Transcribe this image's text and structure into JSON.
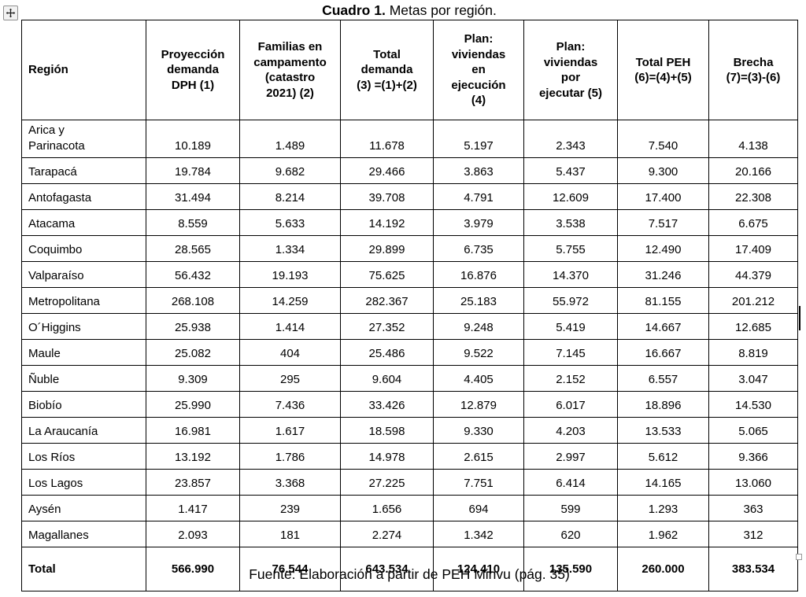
{
  "page": {
    "title_bold": "Cuadro 1.",
    "title_rest": " Metas por región.",
    "footer": "Fuente: Elaboración a partir de PEH Minvu (pág. 35)"
  },
  "icons": {
    "move_handle": "move-icon",
    "resize_handle": "resize-handle",
    "text_cursor": "text-cursor"
  },
  "table": {
    "columns": [
      "Región",
      "Proyección\ndemanda\nDPH (1)",
      "Familias en\ncampamento\n(catastro\n2021) (2)",
      "Total\ndemanda\n(3) =(1)+(2)",
      "Plan:\nviviendas\nen\nejecución\n(4)",
      "Plan:\nviviendas\npor\nejecutar (5)",
      "Total PEH\n(6)=(4)+(5)",
      "Brecha\n(7)=(3)-(6)"
    ],
    "rows": [
      {
        "region": "Arica y\nParinacota",
        "values": [
          "10.189",
          "1.489",
          "11.678",
          "5.197",
          "2.343",
          "7.540",
          "4.138"
        ]
      },
      {
        "region": "Tarapacá",
        "values": [
          "19.784",
          "9.682",
          "29.466",
          "3.863",
          "5.437",
          "9.300",
          "20.166"
        ]
      },
      {
        "region": "Antofagasta",
        "values": [
          "31.494",
          "8.214",
          "39.708",
          "4.791",
          "12.609",
          "17.400",
          "22.308"
        ]
      },
      {
        "region": "Atacama",
        "values": [
          "8.559",
          "5.633",
          "14.192",
          "3.979",
          "3.538",
          "7.517",
          "6.675"
        ]
      },
      {
        "region": "Coquimbo",
        "values": [
          "28.565",
          "1.334",
          "29.899",
          "6.735",
          "5.755",
          "12.490",
          "17.409"
        ]
      },
      {
        "region": "Valparaíso",
        "values": [
          "56.432",
          "19.193",
          "75.625",
          "16.876",
          "14.370",
          "31.246",
          "44.379"
        ]
      },
      {
        "region": "Metropolitana",
        "values": [
          "268.108",
          "14.259",
          "282.367",
          "25.183",
          "55.972",
          "81.155",
          "201.212"
        ]
      },
      {
        "region": "O´Higgins",
        "values": [
          "25.938",
          "1.414",
          "27.352",
          "9.248",
          "5.419",
          "14.667",
          "12.685"
        ]
      },
      {
        "region": "Maule",
        "values": [
          "25.082",
          "404",
          "25.486",
          "9.522",
          "7.145",
          "16.667",
          "8.819"
        ]
      },
      {
        "region": "Ñuble",
        "values": [
          "9.309",
          "295",
          "9.604",
          "4.405",
          "2.152",
          "6.557",
          "3.047"
        ]
      },
      {
        "region": "Biobío",
        "values": [
          "25.990",
          "7.436",
          "33.426",
          "12.879",
          "6.017",
          "18.896",
          "14.530"
        ]
      },
      {
        "region": "La Araucanía",
        "values": [
          "16.981",
          "1.617",
          "18.598",
          "9.330",
          "4.203",
          "13.533",
          "5.065"
        ]
      },
      {
        "region": "Los Ríos",
        "values": [
          "13.192",
          "1.786",
          "14.978",
          "2.615",
          "2.997",
          "5.612",
          "9.366"
        ]
      },
      {
        "region": "Los Lagos",
        "values": [
          "23.857",
          "3.368",
          "27.225",
          "7.751",
          "6.414",
          "14.165",
          "13.060"
        ]
      },
      {
        "region": "Aysén",
        "values": [
          "1.417",
          "239",
          "1.656",
          "694",
          "599",
          "1.293",
          "363"
        ]
      },
      {
        "region": "Magallanes",
        "values": [
          "2.093",
          "181",
          "2.274",
          "1.342",
          "620",
          "1.962",
          "312"
        ]
      }
    ],
    "total": {
      "label": "Total",
      "values": [
        "566.990",
        "76.544",
        "643.534",
        "124.410",
        "135.590",
        "260.000",
        "383.534"
      ]
    }
  }
}
